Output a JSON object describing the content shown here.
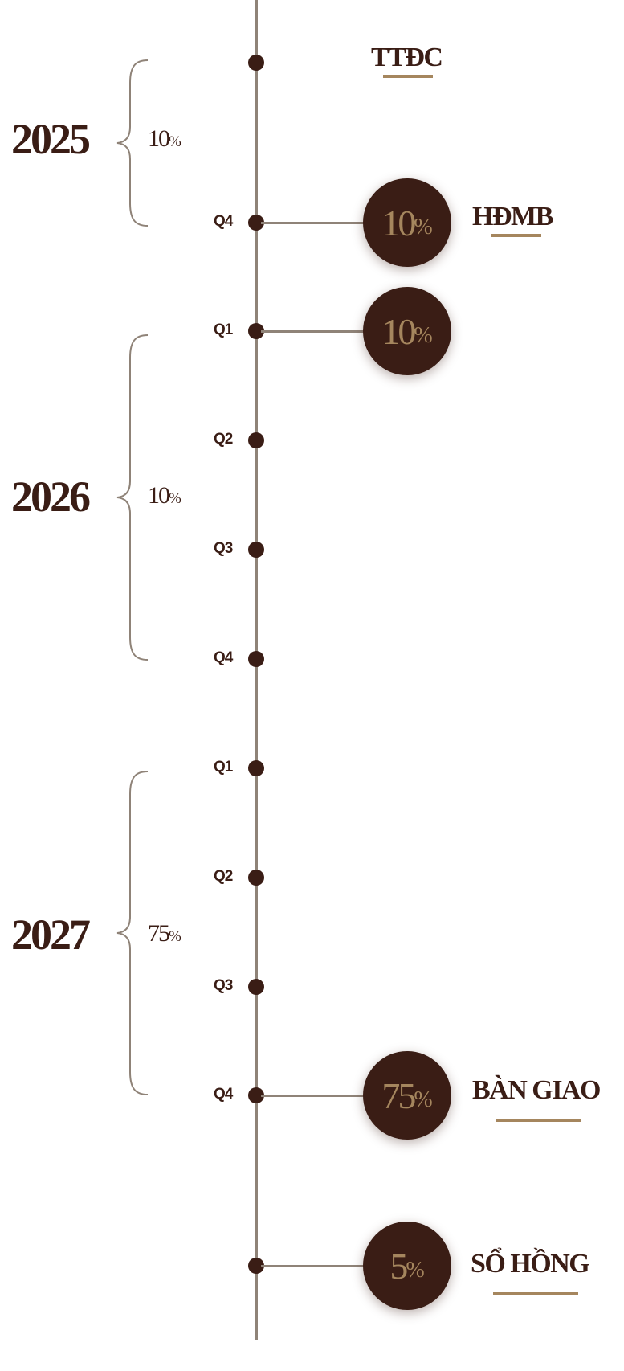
{
  "colors": {
    "dark_brown": "#3a1d15",
    "gold": "#a5865e",
    "line_gray": "#8f8378"
  },
  "years": [
    {
      "year": "2025",
      "percent": "10",
      "pct_sign": "%"
    },
    {
      "year": "2026",
      "percent": "10",
      "pct_sign": "%"
    },
    {
      "year": "2027",
      "percent": "75",
      "pct_sign": "%"
    }
  ],
  "quarters": [
    "Q4",
    "Q1",
    "Q2",
    "Q3",
    "Q4",
    "Q1",
    "Q2",
    "Q3",
    "Q4"
  ],
  "milestones": [
    {
      "label": "TTĐC"
    },
    {
      "label": "HĐMB",
      "percent": "10",
      "pct_sign": "%"
    },
    {
      "percent": "10",
      "pct_sign": "%"
    },
    {
      "label": "BÀN GIAO",
      "percent": "75",
      "pct_sign": "%"
    },
    {
      "label": "SỔ HỒNG",
      "percent": "5",
      "pct_sign": "%"
    }
  ]
}
